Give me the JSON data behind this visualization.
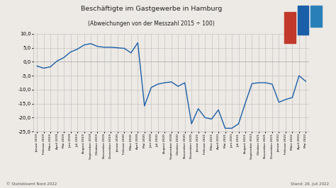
{
  "title": "Beschäftigte im Gastgewerbe in Hamburg",
  "subtitle": "(Abweichungen von der Messzahl 2015 ÷ 100)",
  "background_color": "#ede9e4",
  "plot_bg_color": "#ede9e4",
  "line_color": "#1a5fa8",
  "zero_line_color": "#888888",
  "grid_color": "#bbbbbb",
  "ylim": [
    -25.0,
    10.0
  ],
  "yticks": [
    10.0,
    5.0,
    0.0,
    -5.0,
    -10.0,
    -15.0,
    -20.0,
    -25.0
  ],
  "ytick_labels": [
    "10,0",
    "5,0",
    "0,0",
    "-5,0",
    "-10,0",
    "-15,0",
    "-20,0",
    "-25,0"
  ],
  "footer_left": "© Statistikamt Nord 2022",
  "footer_right": "Stand: 26. Juli 2022",
  "x_labels": [
    "Januar 2019",
    "Februar 2019",
    "März 2019",
    "April 2019",
    "Mai 2019",
    "Juni 2019",
    "Juli 2019",
    "August 2019",
    "September 2019",
    "Oktober 2019",
    "November 2019",
    "Dezember 2019",
    "Januar 2020",
    "Februar 2020",
    "März 2020",
    "April 2020",
    "Mai 2020",
    "Juni 2020",
    "Juli 2020",
    "August 2020",
    "September 2020",
    "Oktober 2020",
    "November 2020",
    "Dezember 2020",
    "Januar 2021",
    "Februar 2021",
    "März 2021",
    "April 2021",
    "Mai 2021",
    "Juni 2021",
    "Juli 2021",
    "August 2021",
    "September 2021",
    "Oktober 2021",
    "November 2021",
    "Dezember 2021",
    "Januar 2022",
    "Februar 2022",
    "März 2022",
    "April 2022",
    "Mai 2022"
  ],
  "values": [
    -1.5,
    -2.3,
    -1.8,
    0.3,
    1.5,
    3.5,
    4.5,
    6.0,
    6.5,
    5.5,
    5.2,
    5.2,
    5.0,
    4.8,
    3.2,
    6.8,
    -15.8,
    -9.2,
    -8.0,
    -7.5,
    -7.2,
    -8.8,
    -7.5,
    -22.2,
    -16.8,
    -20.0,
    -20.5,
    -17.2,
    -23.8,
    -23.8,
    -22.2,
    -14.8,
    -7.8,
    -7.5,
    -7.5,
    -8.0,
    -14.5,
    -13.5,
    -12.8,
    -5.0,
    -7.0
  ]
}
